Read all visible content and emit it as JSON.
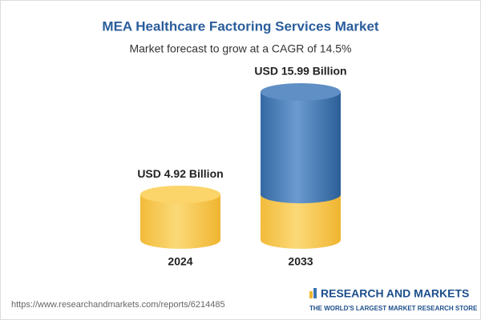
{
  "chart_data": {
    "type": "bar",
    "title": "MEA Healthcare Factoring Services Market",
    "subtitle": "Market forecast to grow at a CAGR of 14.5%",
    "categories": [
      "2024",
      "2033"
    ],
    "values": [
      4.92,
      15.99
    ],
    "value_labels": [
      "USD 4.92 Billion",
      "USD 15.99 Billion"
    ],
    "colors": [
      "#f5c342",
      "#3b74b0"
    ]
  },
  "footer": {
    "url": "https://www.researchandmarkets.com/reports/6214485",
    "brand": "RESEARCH AND MARKETS",
    "tagline": "THE WORLD'S LARGEST MARKET RESEARCH STORE"
  }
}
